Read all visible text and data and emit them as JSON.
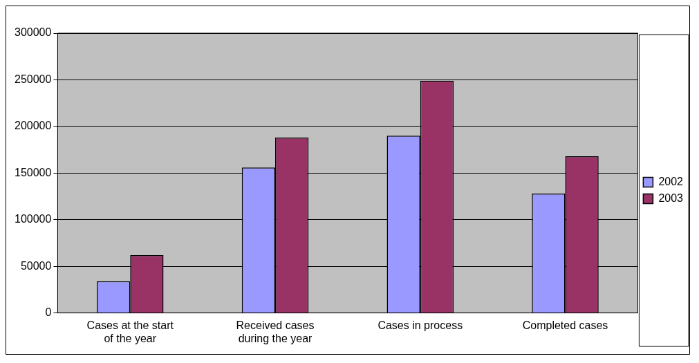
{
  "chart_data": {
    "type": "bar",
    "categories": [
      "Cases at the start of the year",
      "Received cases during the year",
      "Cases in process",
      "Completed cases"
    ],
    "series": [
      {
        "name": "2002",
        "color": "#9999ff",
        "values": [
          34000,
          156000,
          190000,
          128000
        ]
      },
      {
        "name": "2003",
        "color": "#993366",
        "values": [
          62000,
          188000,
          249000,
          168000
        ]
      }
    ],
    "ylim": [
      0,
      300000
    ],
    "yticks": [
      0,
      50000,
      100000,
      150000,
      200000,
      250000,
      300000
    ],
    "grid": "y",
    "legend": "right"
  }
}
